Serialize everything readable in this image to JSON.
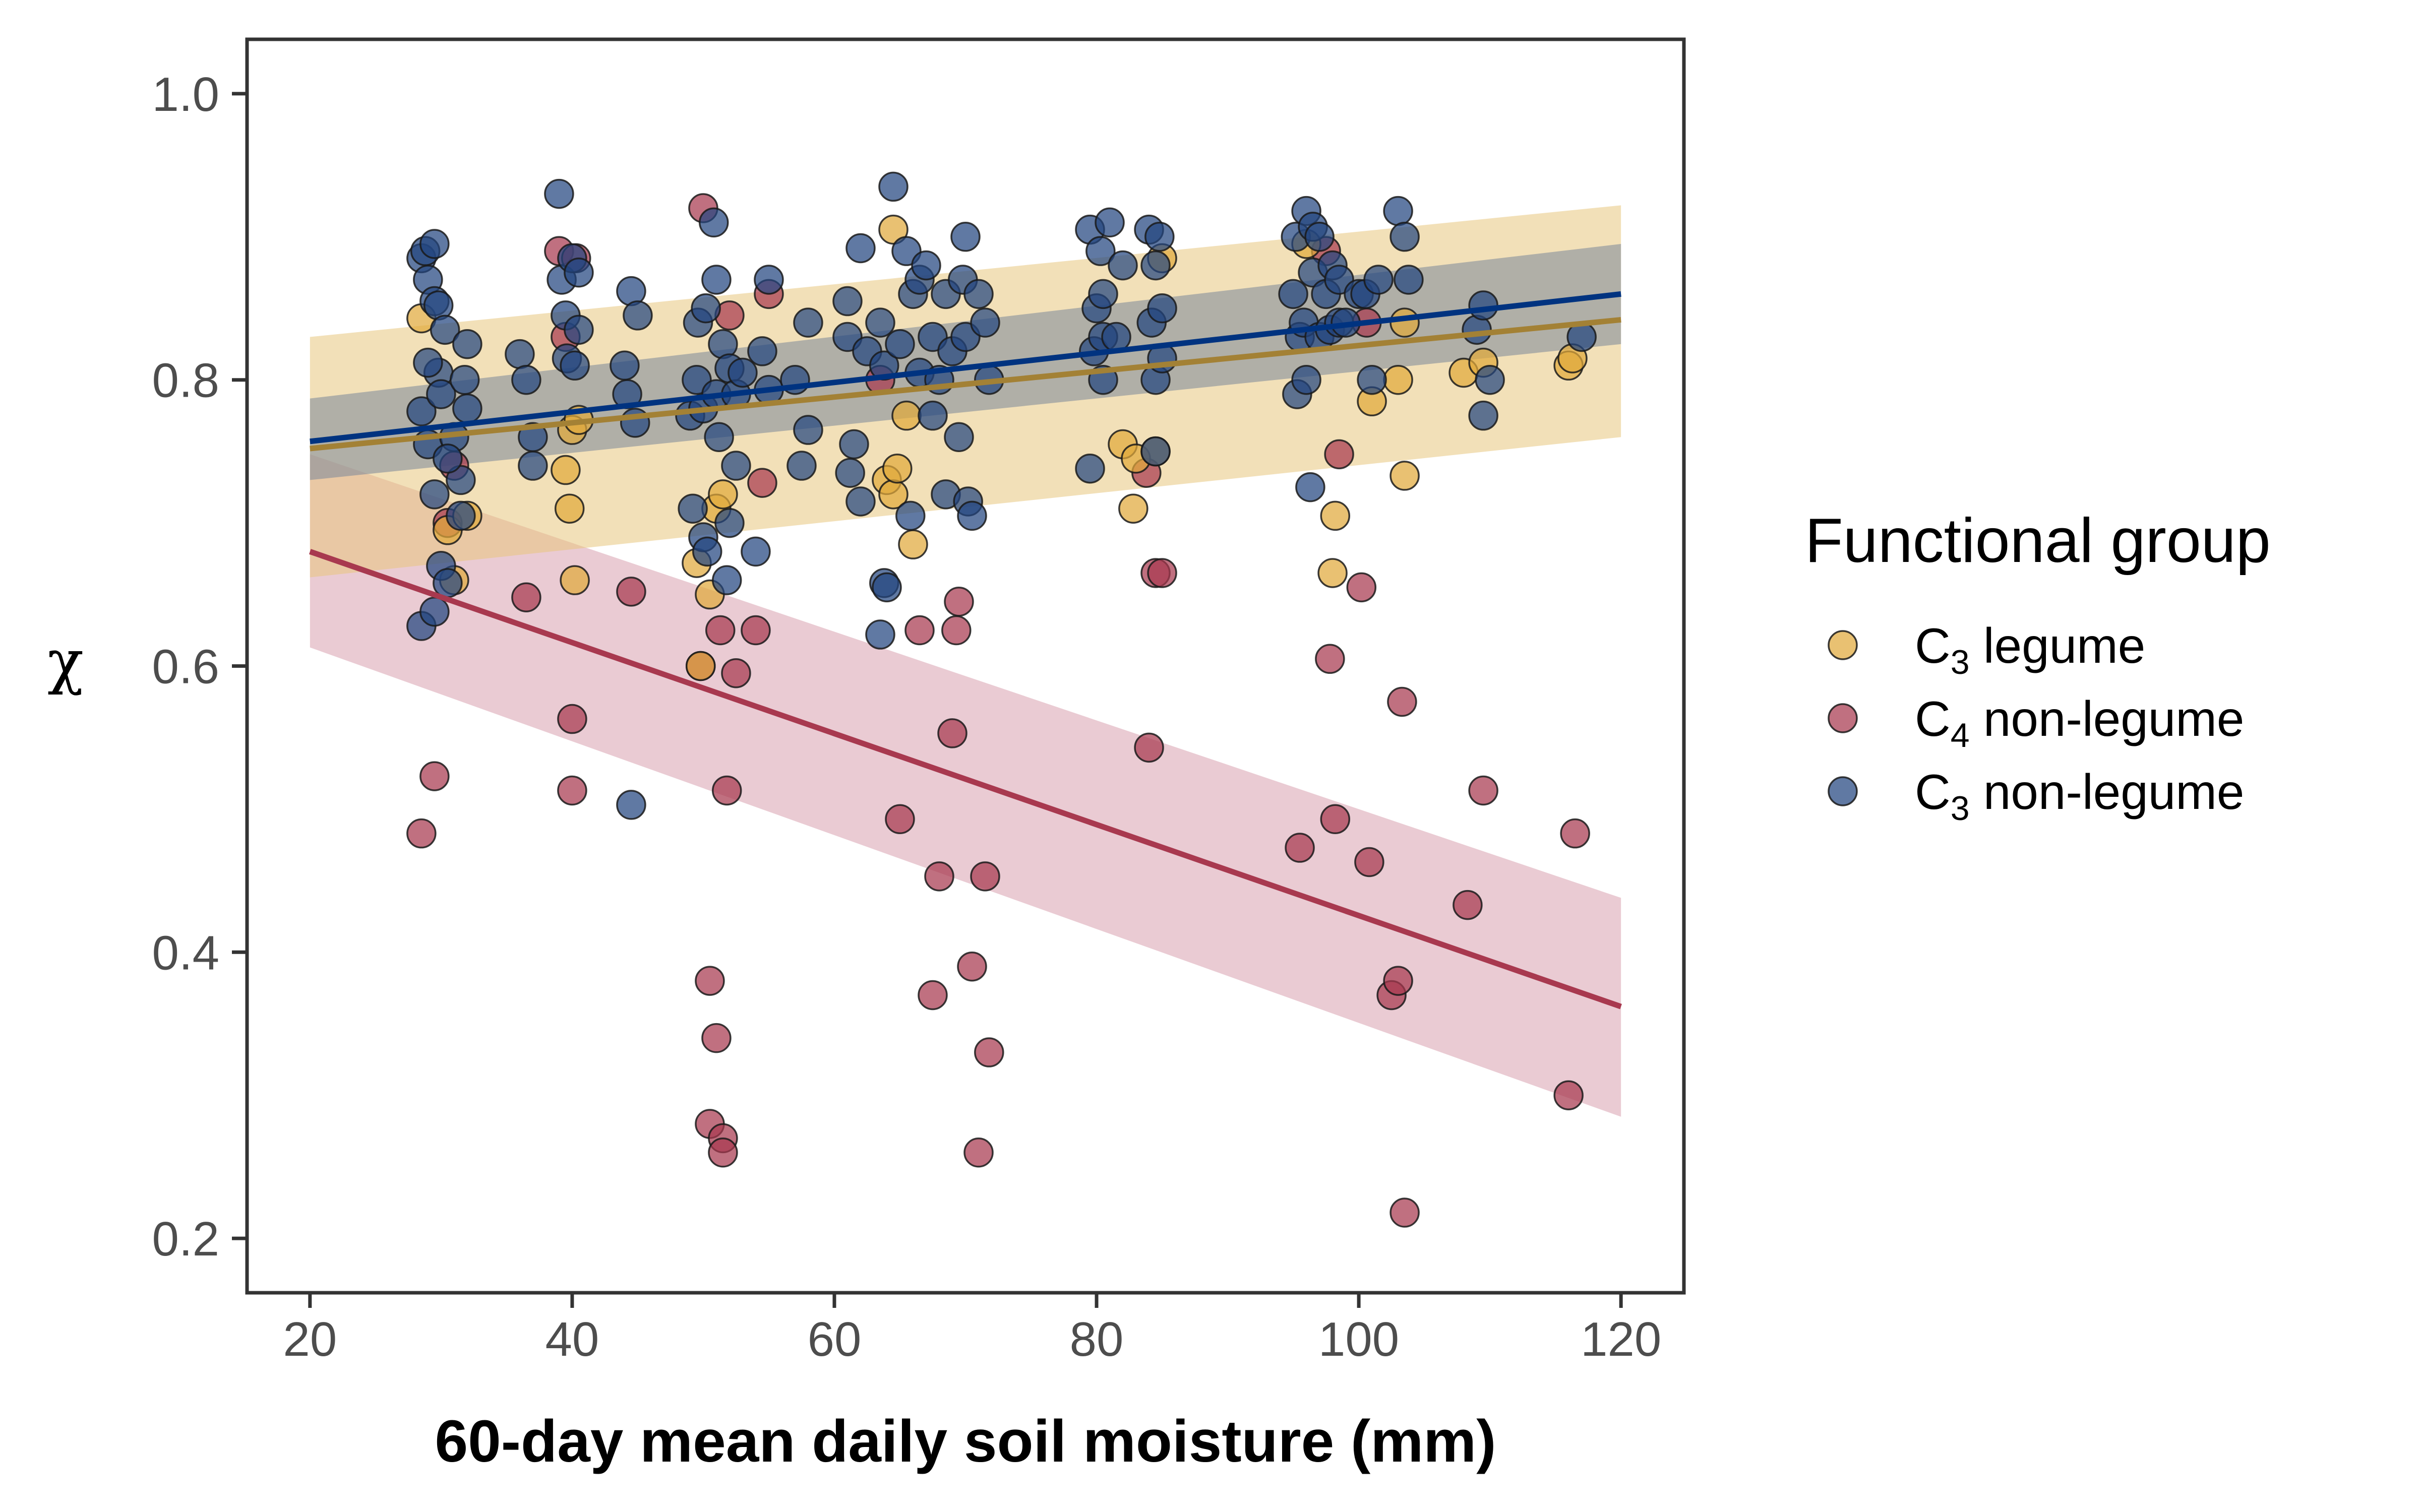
{
  "chart_data": {
    "type": "scatter",
    "xlabel": "60-day mean daily soil moisture (mm)",
    "ylabel": "χ",
    "xlim": [
      15.2,
      124.8
    ],
    "ylim": [
      0.162,
      1.038
    ],
    "x_ticks": [
      20,
      40,
      60,
      80,
      100,
      120
    ],
    "y_ticks": [
      0.2,
      0.4,
      0.6,
      0.8,
      1.0
    ],
    "x_tick_labels": [
      "20",
      "40",
      "60",
      "80",
      "100",
      "120"
    ],
    "y_tick_labels": [
      "0.2",
      "0.4",
      "0.6",
      "0.8",
      "1.0"
    ],
    "grid": false,
    "legend": {
      "title": "Functional group",
      "placement": "right",
      "entries": [
        {
          "key": "c3_legume",
          "prefix": "C",
          "sub": "3",
          "suffix": " legume"
        },
        {
          "key": "c4_nonlegume",
          "prefix": "C",
          "sub": "4",
          "suffix": " non-legume"
        },
        {
          "key": "c3_nonlegume",
          "prefix": "C",
          "sub": "3",
          "suffix": " non-legume"
        }
      ]
    },
    "colors": {
      "c3_legume": "#E0A93B",
      "c4_nonlegume": "#A8394F",
      "c3_nonlegume": "#22457F",
      "c3_legume_line": "#A38135",
      "c4_nonlegume_line": "#A8394F",
      "c3_nonlegume_line": "#003380",
      "c3_legume_ribbon": "#E8C77E",
      "c4_nonlegume_ribbon": "#D9A0AE",
      "c3_nonlegume_ribbon": "#7A8799"
    },
    "series": [
      {
        "key": "c3_legume",
        "points": [
          [
            28.5,
            0.843
          ],
          [
            30.5,
            0.695
          ],
          [
            31,
            0.66
          ],
          [
            32,
            0.705
          ],
          [
            39.5,
            0.737
          ],
          [
            39.8,
            0.71
          ],
          [
            40,
            0.765
          ],
          [
            40.2,
            0.66
          ],
          [
            40.5,
            0.772
          ],
          [
            49.5,
            0.672
          ],
          [
            49.8,
            0.6
          ],
          [
            50.5,
            0.65
          ],
          [
            51,
            0.71
          ],
          [
            51.5,
            0.72
          ],
          [
            64,
            0.73
          ],
          [
            64.5,
            0.72
          ],
          [
            64.8,
            0.738
          ],
          [
            64.5,
            0.905
          ],
          [
            65.5,
            0.775
          ],
          [
            66,
            0.685
          ],
          [
            82,
            0.755
          ],
          [
            82.8,
            0.71
          ],
          [
            83,
            0.745
          ],
          [
            84.5,
            0.75
          ],
          [
            85,
            0.885
          ],
          [
            96,
            0.895
          ],
          [
            98,
            0.665
          ],
          [
            98.2,
            0.705
          ],
          [
            101,
            0.785
          ],
          [
            103,
            0.8
          ],
          [
            103.5,
            0.733
          ],
          [
            103.5,
            0.84
          ],
          [
            108,
            0.805
          ],
          [
            109.5,
            0.812
          ],
          [
            116,
            0.81
          ],
          [
            116.3,
            0.815
          ]
        ]
      },
      {
        "key": "c4_nonlegume",
        "points": [
          [
            28.5,
            0.483
          ],
          [
            29.5,
            0.523
          ],
          [
            30.5,
            0.7
          ],
          [
            31,
            0.74
          ],
          [
            36.5,
            0.648
          ],
          [
            39,
            0.89
          ],
          [
            39.5,
            0.83
          ],
          [
            40,
            0.563
          ],
          [
            40,
            0.513
          ],
          [
            40.3,
            0.885
          ],
          [
            44.5,
            0.652
          ],
          [
            49.8,
            0.6
          ],
          [
            50,
            0.92
          ],
          [
            50.5,
            0.38
          ],
          [
            50.5,
            0.28
          ],
          [
            51,
            0.34
          ],
          [
            51.3,
            0.625
          ],
          [
            51.5,
            0.27
          ],
          [
            51.5,
            0.26
          ],
          [
            51.8,
            0.513
          ],
          [
            52,
            0.845
          ],
          [
            52.5,
            0.595
          ],
          [
            54,
            0.625
          ],
          [
            54.5,
            0.728
          ],
          [
            55,
            0.86
          ],
          [
            63.5,
            0.8
          ],
          [
            65,
            0.493
          ],
          [
            66.5,
            0.625
          ],
          [
            67.5,
            0.37
          ],
          [
            68,
            0.453
          ],
          [
            69,
            0.553
          ],
          [
            69.3,
            0.625
          ],
          [
            69.5,
            0.645
          ],
          [
            70.5,
            0.39
          ],
          [
            71,
            0.26
          ],
          [
            71.5,
            0.453
          ],
          [
            71.8,
            0.33
          ],
          [
            83.8,
            0.735
          ],
          [
            84,
            0.543
          ],
          [
            84.5,
            0.665
          ],
          [
            85,
            0.665
          ],
          [
            97.5,
            0.89
          ],
          [
            97.8,
            0.605
          ],
          [
            98.2,
            0.493
          ],
          [
            98.5,
            0.748
          ],
          [
            95.5,
            0.473
          ],
          [
            100.2,
            0.655
          ],
          [
            100.6,
            0.84
          ],
          [
            100.8,
            0.463
          ],
          [
            102.5,
            0.37
          ],
          [
            103,
            0.38
          ],
          [
            103.3,
            0.575
          ],
          [
            103.5,
            0.218
          ],
          [
            108.3,
            0.433
          ],
          [
            109.5,
            0.513
          ],
          [
            116,
            0.3
          ],
          [
            116.5,
            0.483
          ]
        ]
      },
      {
        "key": "c3_nonlegume",
        "points": [
          [
            28.5,
            0.885
          ],
          [
            28.8,
            0.89
          ],
          [
            29,
            0.87
          ],
          [
            29.5,
            0.895
          ],
          [
            29.5,
            0.855
          ],
          [
            29.8,
            0.852
          ],
          [
            28.5,
            0.628
          ],
          [
            29.5,
            0.638
          ],
          [
            30,
            0.67
          ],
          [
            30.5,
            0.658
          ],
          [
            28.5,
            0.778
          ],
          [
            29,
            0.755
          ],
          [
            29.5,
            0.72
          ],
          [
            29.8,
            0.805
          ],
          [
            30,
            0.79
          ],
          [
            30.3,
            0.835
          ],
          [
            31,
            0.76
          ],
          [
            31.5,
            0.73
          ],
          [
            31.5,
            0.705
          ],
          [
            32,
            0.825
          ],
          [
            32,
            0.78
          ],
          [
            29,
            0.812
          ],
          [
            30.5,
            0.745
          ],
          [
            31.8,
            0.8
          ],
          [
            36,
            0.818
          ],
          [
            36.5,
            0.8
          ],
          [
            37,
            0.76
          ],
          [
            37,
            0.74
          ],
          [
            39,
            0.93
          ],
          [
            39.2,
            0.87
          ],
          [
            39.5,
            0.845
          ],
          [
            39.6,
            0.815
          ],
          [
            40,
            0.885
          ],
          [
            40.2,
            0.81
          ],
          [
            40.5,
            0.875
          ],
          [
            40.5,
            0.835
          ],
          [
            44,
            0.81
          ],
          [
            44.2,
            0.79
          ],
          [
            44.5,
            0.862
          ],
          [
            44.5,
            0.503
          ],
          [
            45,
            0.845
          ],
          [
            44.8,
            0.77
          ],
          [
            49,
            0.775
          ],
          [
            49.2,
            0.71
          ],
          [
            49.5,
            0.8
          ],
          [
            49.6,
            0.84
          ],
          [
            50,
            0.78
          ],
          [
            50,
            0.69
          ],
          [
            50.2,
            0.85
          ],
          [
            50.3,
            0.68
          ],
          [
            50.8,
            0.91
          ],
          [
            51,
            0.87
          ],
          [
            51,
            0.79
          ],
          [
            51.2,
            0.76
          ],
          [
            51.5,
            0.825
          ],
          [
            51.8,
            0.66
          ],
          [
            52,
            0.808
          ],
          [
            52,
            0.7
          ],
          [
            52.5,
            0.79
          ],
          [
            52.5,
            0.74
          ],
          [
            53,
            0.805
          ],
          [
            54,
            0.68
          ],
          [
            54.5,
            0.82
          ],
          [
            55,
            0.87
          ],
          [
            55,
            0.793
          ],
          [
            57,
            0.8
          ],
          [
            57.5,
            0.74
          ],
          [
            58,
            0.765
          ],
          [
            58,
            0.84
          ],
          [
            61,
            0.855
          ],
          [
            61,
            0.83
          ],
          [
            61.2,
            0.735
          ],
          [
            61.5,
            0.755
          ],
          [
            62,
            0.892
          ],
          [
            62,
            0.715
          ],
          [
            62.5,
            0.82
          ],
          [
            63.5,
            0.84
          ],
          [
            63.8,
            0.81
          ],
          [
            63.5,
            0.622
          ],
          [
            63.8,
            0.658
          ],
          [
            64,
            0.655
          ],
          [
            64.5,
            0.935
          ],
          [
            65,
            0.825
          ],
          [
            65.5,
            0.89
          ],
          [
            65.8,
            0.705
          ],
          [
            66,
            0.86
          ],
          [
            66.5,
            0.805
          ],
          [
            66.5,
            0.87
          ],
          [
            67,
            0.88
          ],
          [
            67.5,
            0.83
          ],
          [
            67.5,
            0.775
          ],
          [
            68,
            0.8
          ],
          [
            68.5,
            0.86
          ],
          [
            68.5,
            0.72
          ],
          [
            69,
            0.82
          ],
          [
            69.5,
            0.76
          ],
          [
            69.8,
            0.87
          ],
          [
            70,
            0.83
          ],
          [
            70,
            0.9
          ],
          [
            70.2,
            0.715
          ],
          [
            70.5,
            0.705
          ],
          [
            71,
            0.86
          ],
          [
            71.5,
            0.84
          ],
          [
            71.8,
            0.8
          ],
          [
            79.5,
            0.905
          ],
          [
            79.8,
            0.82
          ],
          [
            80,
            0.85
          ],
          [
            80.3,
            0.89
          ],
          [
            80.5,
            0.83
          ],
          [
            80.5,
            0.8
          ],
          [
            79.5,
            0.738
          ],
          [
            80.5,
            0.86
          ],
          [
            81,
            0.91
          ],
          [
            81.5,
            0.83
          ],
          [
            82,
            0.88
          ],
          [
            84,
            0.905
          ],
          [
            84.2,
            0.84
          ],
          [
            84.5,
            0.88
          ],
          [
            84.5,
            0.8
          ],
          [
            84.8,
            0.9
          ],
          [
            85,
            0.85
          ],
          [
            85,
            0.815
          ],
          [
            84.5,
            0.75
          ],
          [
            95,
            0.86
          ],
          [
            95.2,
            0.9
          ],
          [
            95.3,
            0.79
          ],
          [
            95.5,
            0.83
          ],
          [
            95.8,
            0.84
          ],
          [
            96,
            0.918
          ],
          [
            96.5,
            0.875
          ],
          [
            96.5,
            0.907
          ],
          [
            96,
            0.8
          ],
          [
            97,
            0.9
          ],
          [
            97,
            0.83
          ],
          [
            97.5,
            0.86
          ],
          [
            97.8,
            0.835
          ],
          [
            96.3,
            0.725
          ],
          [
            98,
            0.88
          ],
          [
            98.5,
            0.87
          ],
          [
            98.5,
            0.84
          ],
          [
            99,
            0.84
          ],
          [
            100,
            0.86
          ],
          [
            100.5,
            0.86
          ],
          [
            101,
            0.8
          ],
          [
            101.5,
            0.87
          ],
          [
            103,
            0.918
          ],
          [
            103.5,
            0.9
          ],
          [
            103.8,
            0.87
          ],
          [
            109,
            0.835
          ],
          [
            109.5,
            0.852
          ],
          [
            109.5,
            0.775
          ],
          [
            110,
            0.8
          ],
          [
            117,
            0.83
          ]
        ]
      }
    ],
    "fits": [
      {
        "key": "c3_legume",
        "x": [
          20,
          120
        ],
        "y": [
          0.752,
          0.842
        ],
        "ci_low": [
          0.662,
          0.76
        ],
        "ci_high": [
          0.83,
          0.922
        ]
      },
      {
        "key": "c3_nonlegume",
        "x": [
          20,
          120
        ],
        "y": [
          0.757,
          0.86
        ],
        "ci_low": [
          0.73,
          0.825
        ],
        "ci_high": [
          0.787,
          0.895
        ]
      },
      {
        "key": "c4_nonlegume",
        "x": [
          20,
          120
        ],
        "y": [
          0.68,
          0.362
        ],
        "ci_low": [
          0.613,
          0.285
        ],
        "ci_high": [
          0.748,
          0.438
        ]
      }
    ]
  }
}
